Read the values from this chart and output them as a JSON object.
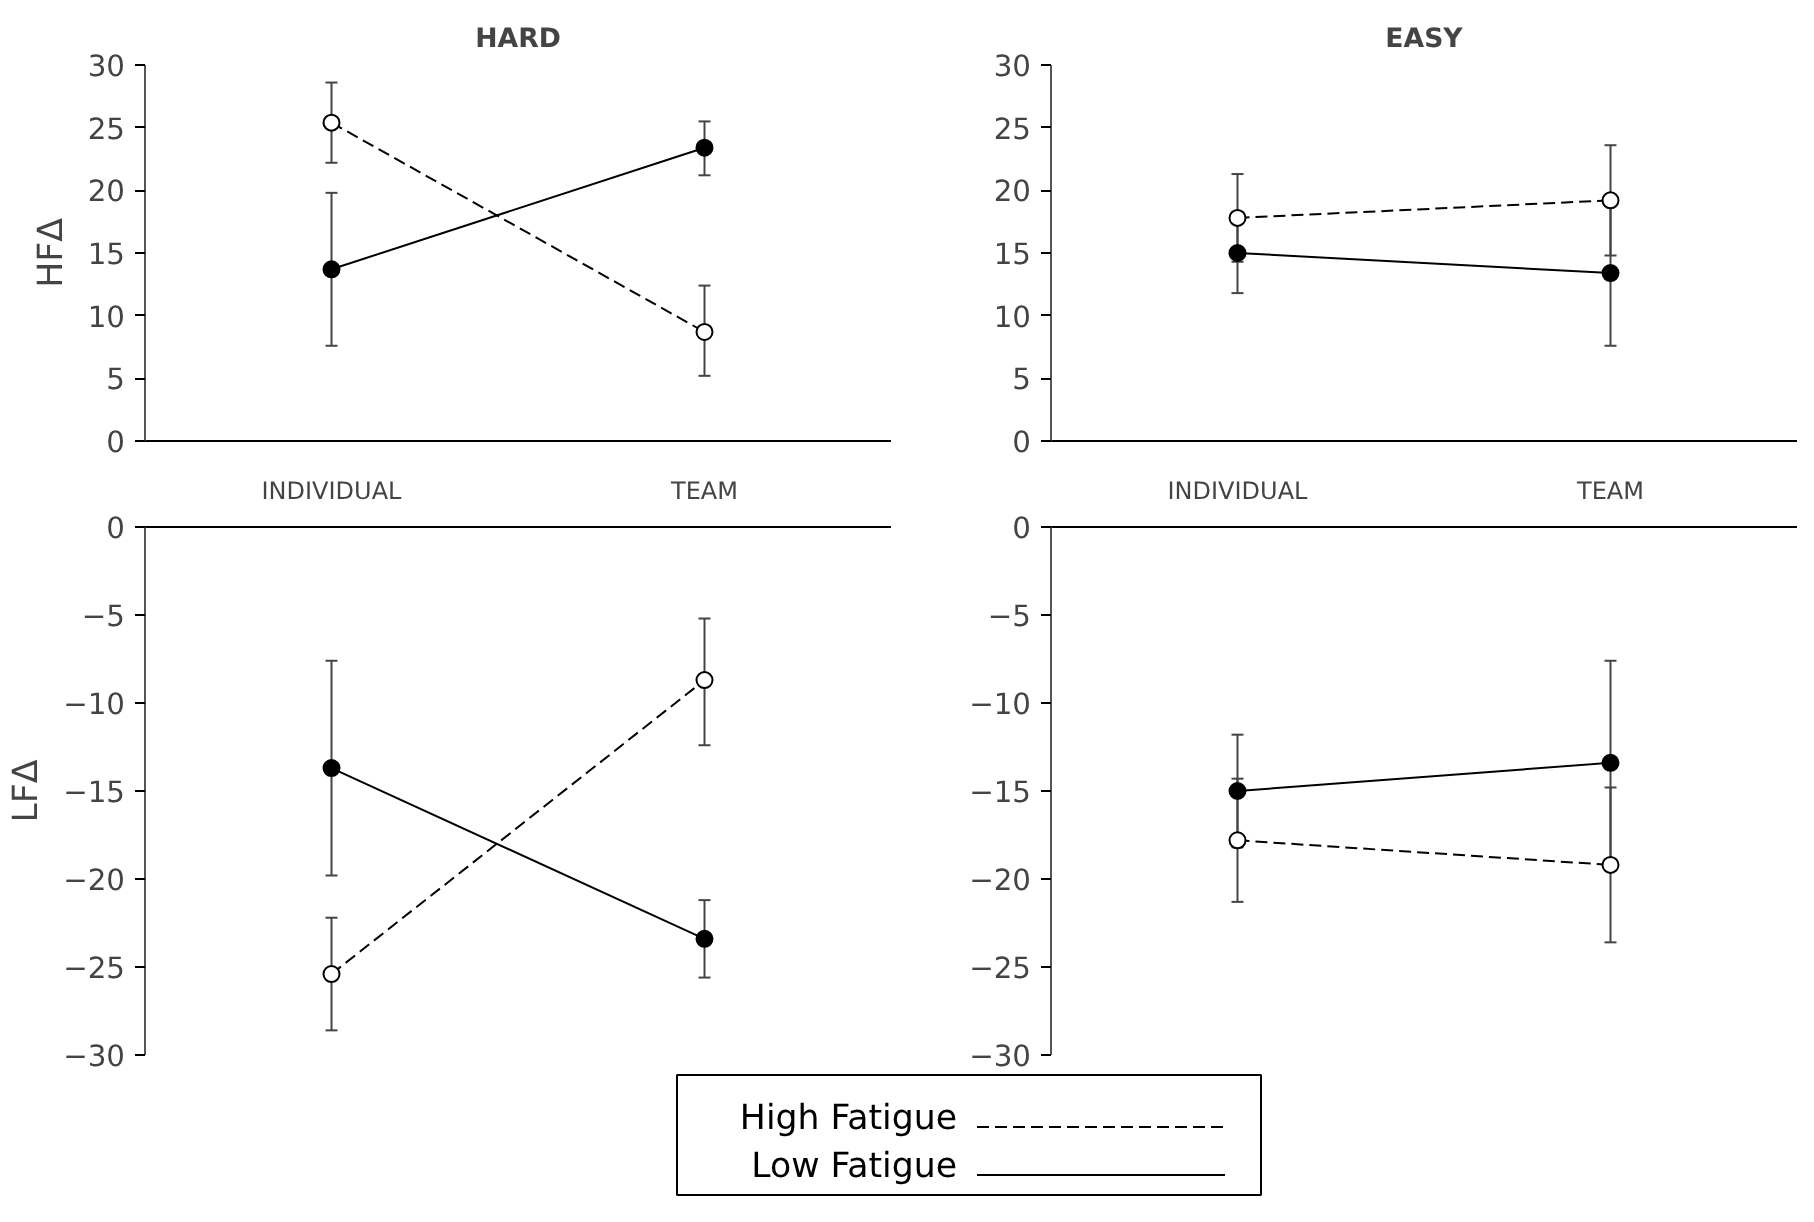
{
  "chart_data": [
    {
      "type": "line",
      "title": "HARD",
      "ylabel": "HFΔ",
      "categories": [
        "INDIVIDUAL",
        "TEAM"
      ],
      "ylim": [
        0,
        30
      ],
      "yticks": [
        0,
        5,
        10,
        15,
        20,
        25,
        30
      ],
      "grid": false,
      "marker": "circle",
      "series": [
        {
          "color": "#ffffff",
          "line_style": "dashed",
          "values": [
            25.4,
            8.7
          ],
          "errors": [
            [
              22.2,
              28.6
            ],
            [
              5.2,
              12.4
            ]
          ]
        },
        {
          "color": "#000000",
          "line_style": "solid",
          "values": [
            13.7,
            23.4
          ],
          "errors": [
            [
              7.6,
              19.8
            ],
            [
              21.2,
              25.5
            ]
          ]
        }
      ]
    },
    {
      "type": "line",
      "title": "EASY",
      "categories": [
        "INDIVIDUAL",
        "TEAM"
      ],
      "ylim": [
        0,
        30
      ],
      "yticks": [
        0,
        5,
        10,
        15,
        20,
        25,
        30
      ],
      "grid": false,
      "marker": "circle",
      "series": [
        {
          "color": "#ffffff",
          "line_style": "dashed",
          "values": [
            17.8,
            19.2
          ],
          "errors": [
            [
              14.3,
              21.3
            ],
            [
              14.8,
              23.6
            ]
          ]
        },
        {
          "color": "#000000",
          "line_style": "solid",
          "values": [
            15.0,
            13.4
          ],
          "errors": [
            [
              11.8,
              18.2
            ],
            [
              7.6,
              19.2
            ]
          ]
        }
      ]
    },
    {
      "type": "line",
      "ylabel": "LFΔ",
      "categories": [
        null,
        null
      ],
      "tick_labels": "y",
      "ylim": [
        -30,
        0
      ],
      "yticks": [
        -30,
        -25,
        -20,
        -15,
        -10,
        -5,
        0
      ],
      "grid": false,
      "marker": "circle",
      "legend": "bottom",
      "series": [
        {
          "name": "High Fatigue",
          "color": "#ffffff",
          "line_style": "dashed",
          "values": [
            -25.4,
            -8.7
          ],
          "errors": [
            [
              -28.6,
              -22.2
            ],
            [
              -12.4,
              -5.2
            ]
          ]
        },
        {
          "name": "Low Fatigue",
          "color": "#000000",
          "line_style": "solid",
          "values": [
            -13.7,
            -23.4
          ],
          "errors": [
            [
              -19.8,
              -7.6
            ],
            [
              -25.6,
              -21.2
            ]
          ]
        }
      ]
    },
    {
      "type": "line",
      "categories": [
        null,
        null
      ],
      "tick_labels": "y",
      "ylim": [
        -30,
        0
      ],
      "yticks": [
        -30,
        -25,
        -20,
        -15,
        -10,
        -5,
        0
      ],
      "grid": false,
      "marker": "circle",
      "series": [
        {
          "color": "#ffffff",
          "line_style": "dashed",
          "values": [
            -17.8,
            -19.2
          ],
          "errors": [
            [
              -21.3,
              -14.3
            ],
            [
              -23.6,
              -14.8
            ]
          ]
        },
        {
          "color": "#000000",
          "line_style": "solid",
          "values": [
            -15.0,
            -13.4
          ],
          "errors": [
            [
              -18.2,
              -11.8
            ],
            [
              -19.2,
              -7.6
            ]
          ]
        }
      ]
    }
  ]
}
